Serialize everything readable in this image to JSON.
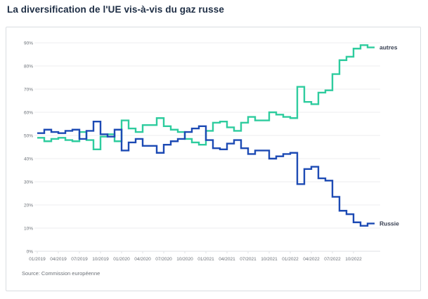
{
  "page": {
    "title": "La diversification de l'UE vis-à-vis du gaz russe"
  },
  "chart_data": {
    "type": "line",
    "step": true,
    "title": "La diversification de l'UE vis-à-vis du gaz russe",
    "unit": "%",
    "x_months": [
      "01/2019",
      "02/2019",
      "03/2019",
      "04/2019",
      "05/2019",
      "06/2019",
      "07/2019",
      "08/2019",
      "09/2019",
      "10/2019",
      "11/2019",
      "12/2019",
      "01/2020",
      "02/2020",
      "03/2020",
      "04/2020",
      "05/2020",
      "06/2020",
      "07/2020",
      "08/2020",
      "09/2020",
      "10/2020",
      "11/2020",
      "12/2020",
      "01/2021",
      "02/2021",
      "03/2021",
      "04/2021",
      "05/2021",
      "06/2021",
      "07/2021",
      "08/2021",
      "09/2021",
      "10/2021",
      "11/2021",
      "12/2021",
      "01/2022",
      "02/2022",
      "03/2022",
      "04/2022",
      "05/2022",
      "06/2022",
      "07/2022",
      "08/2022",
      "09/2022",
      "10/2022",
      "11/2022",
      "12/2022"
    ],
    "x_tick_labels": [
      "01/2019",
      "04/2019",
      "07/2019",
      "10/2019",
      "01/2020",
      "04/2020",
      "07/2020",
      "10/2020",
      "01/2021",
      "04/2021",
      "07/2021",
      "10/2021",
      "01/2022",
      "04/2022",
      "07/2022",
      "10/2022"
    ],
    "y_tick_labels": [
      "0%",
      "10%",
      "20%",
      "30%",
      "40%",
      "50%",
      "60%",
      "70%",
      "80%",
      "90%"
    ],
    "y_tick_values": [
      0,
      10,
      20,
      30,
      40,
      50,
      60,
      70,
      80,
      90
    ],
    "ylim": [
      0,
      90
    ],
    "grid": "horizontal",
    "labels_at_line_end": true,
    "series": [
      {
        "name": "autres",
        "color": "#2ecc9e",
        "values": [
          49,
          47.5,
          48.5,
          49,
          48,
          47.5,
          51.5,
          48,
          44,
          49.5,
          50.5,
          47.5,
          56.5,
          53,
          51.5,
          54.5,
          54.5,
          57.5,
          54,
          52.5,
          51.5,
          48.5,
          47,
          46,
          52,
          55.5,
          56,
          53.5,
          52,
          55.5,
          58,
          56.5,
          56.5,
          60,
          59,
          58,
          57.5,
          71,
          64.5,
          63.5,
          68.5,
          69.5,
          76.5,
          82.5,
          84,
          87.5,
          89,
          88
        ]
      },
      {
        "name": "Russie",
        "color": "#1c4ab4",
        "values": [
          51,
          52.5,
          51.5,
          51,
          52,
          52.5,
          48.5,
          52,
          56,
          50.5,
          49.5,
          52.5,
          43.5,
          47,
          48.5,
          45.5,
          45.5,
          42.5,
          46,
          47.5,
          48.5,
          51.5,
          53,
          54,
          48,
          44.5,
          44,
          46.5,
          48,
          44.5,
          42,
          43.5,
          43.5,
          40,
          41,
          42,
          42.5,
          29,
          35.5,
          36.5,
          31.5,
          30.5,
          23.5,
          17.5,
          16,
          12.5,
          11,
          12
        ]
      }
    ],
    "source": "Source: Commission européenne"
  },
  "colors": {
    "title": "#1d2d44",
    "axis_text": "#6b7077",
    "grid": "#ededef",
    "axis_line": "#dfe2e6",
    "card_border": "#d9dde1",
    "series_label": "#3a4254"
  }
}
